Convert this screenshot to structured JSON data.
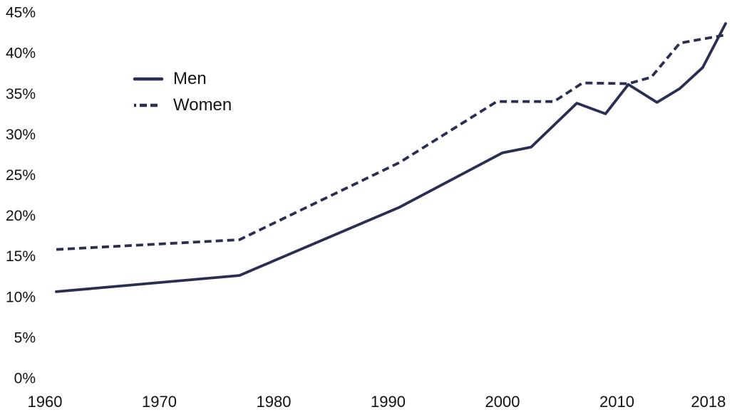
{
  "chart_data": {
    "type": "line",
    "title": "",
    "xlabel": "",
    "ylabel": "",
    "xlim": [
      1960,
      2020
    ],
    "ylim": [
      0,
      45
    ],
    "grid": false,
    "legend_position": "upper-left-inside",
    "line_color": "#2a2e52",
    "text_color": "#121212",
    "background_color": "#ffffff",
    "x_tick_values": [
      1960,
      1970,
      1980,
      1990,
      2000,
      2010,
      2018
    ],
    "x_tick_labels": [
      "1960",
      "1970",
      "1980",
      "1990",
      "2000",
      "2010",
      "2018"
    ],
    "y_tick_values": [
      0,
      5,
      10,
      15,
      20,
      25,
      30,
      35,
      40,
      45
    ],
    "y_tick_labels": [
      "0%",
      "5%",
      "10%",
      "15%",
      "20%",
      "25%",
      "30%",
      "35%",
      "40%",
      "45%"
    ],
    "series": [
      {
        "name": "Men",
        "line_style": "solid",
        "points": [
          [
            1961,
            10.6
          ],
          [
            1977,
            12.6
          ],
          [
            1991,
            21.0
          ],
          [
            2000,
            27.7
          ],
          [
            2002.5,
            28.4
          ],
          [
            2006.5,
            33.8
          ],
          [
            2009,
            32.5
          ],
          [
            2011,
            36.1
          ],
          [
            2013.5,
            33.9
          ],
          [
            2015.5,
            35.6
          ],
          [
            2017.5,
            38.2
          ],
          [
            2019.5,
            43.6
          ]
        ]
      },
      {
        "name": "Women",
        "line_style": "dashed",
        "points": [
          [
            1961,
            15.8
          ],
          [
            1977,
            17.0
          ],
          [
            1991,
            26.5
          ],
          [
            1999.5,
            34.0
          ],
          [
            2004.5,
            34.0
          ],
          [
            2007,
            36.3
          ],
          [
            2011,
            36.2
          ],
          [
            2013,
            37.0
          ],
          [
            2015.5,
            41.2
          ],
          [
            2017.5,
            41.7
          ],
          [
            2019.5,
            42.2
          ]
        ]
      }
    ]
  }
}
